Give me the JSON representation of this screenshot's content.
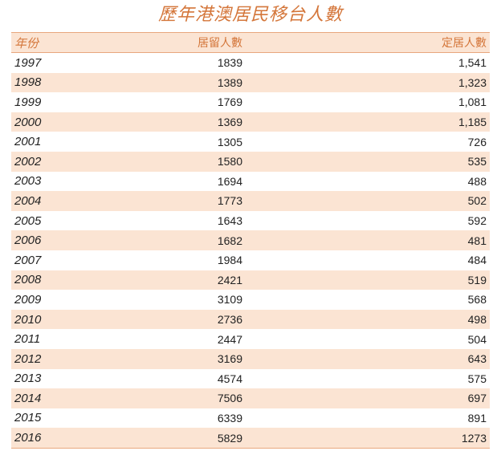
{
  "title": "歷年港澳居民移台人數",
  "table": {
    "headers": {
      "year": "年份",
      "residence": "居留人數",
      "settlement": "定居人數"
    },
    "rows": [
      {
        "year": "1997",
        "residence": "1839",
        "settlement": "1,541"
      },
      {
        "year": "1998",
        "residence": "1389",
        "settlement": "1,323"
      },
      {
        "year": "1999",
        "residence": "1769",
        "settlement": "1,081"
      },
      {
        "year": "2000",
        "residence": "1369",
        "settlement": "1,185"
      },
      {
        "year": "2001",
        "residence": "1305",
        "settlement": "726"
      },
      {
        "year": "2002",
        "residence": "1580",
        "settlement": "535"
      },
      {
        "year": "2003",
        "residence": "1694",
        "settlement": "488"
      },
      {
        "year": "2004",
        "residence": "1773",
        "settlement": "502"
      },
      {
        "year": "2005",
        "residence": "1643",
        "settlement": "592"
      },
      {
        "year": "2006",
        "residence": "1682",
        "settlement": "481"
      },
      {
        "year": "2007",
        "residence": "1984",
        "settlement": "484"
      },
      {
        "year": "2008",
        "residence": "2421",
        "settlement": "519"
      },
      {
        "year": "2009",
        "residence": "3109",
        "settlement": "568"
      },
      {
        "year": "2010",
        "residence": "2736",
        "settlement": "498"
      },
      {
        "year": "2011",
        "residence": "2447",
        "settlement": "504"
      },
      {
        "year": "2012",
        "residence": "3169",
        "settlement": "643"
      },
      {
        "year": "2013",
        "residence": "4574",
        "settlement": "575"
      },
      {
        "year": "2014",
        "residence": "7506",
        "settlement": "697"
      },
      {
        "year": "2015",
        "residence": "6339",
        "settlement": "891"
      },
      {
        "year": "2016",
        "residence": "5829",
        "settlement": "1273"
      }
    ]
  },
  "colors": {
    "accent": "#d4763a",
    "row_shade": "#fbe4d3",
    "rule": "#e8a77e"
  }
}
